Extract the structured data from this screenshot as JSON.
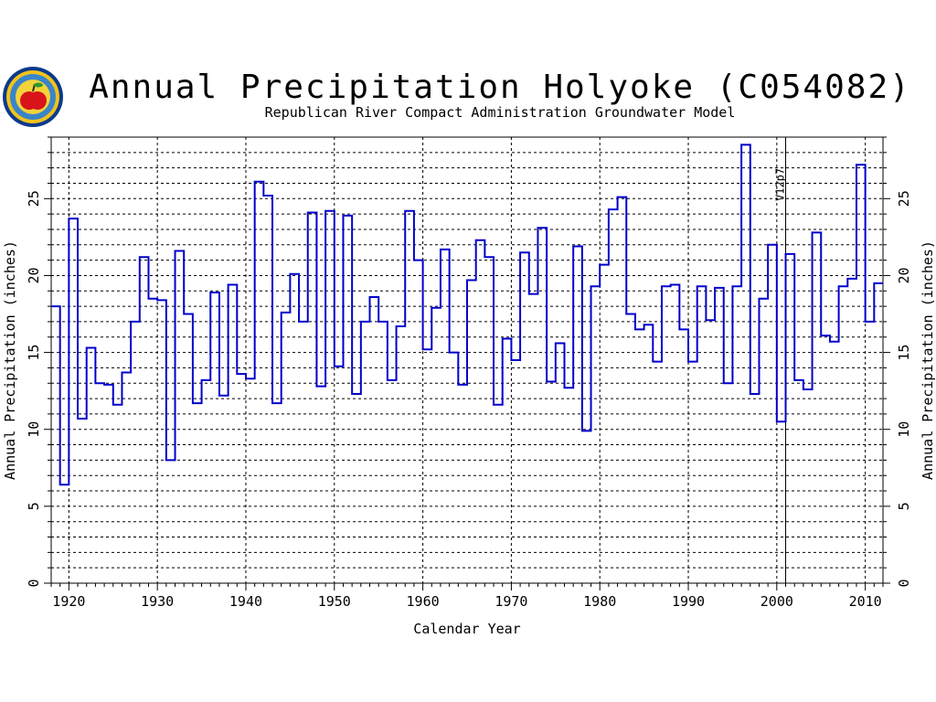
{
  "chart_data": {
    "type": "line",
    "step": true,
    "title": "Annual Precipitation Holyoke (C054082)",
    "subtitle": "Republican River Compact Administration Groundwater Model",
    "xlabel": "Calendar Year",
    "ylabel_left": "Annual Precipitation (inches)",
    "ylabel_right": "Annual Precipitation (inches)",
    "xlim": [
      1918,
      2012
    ],
    "ylim": [
      0,
      29
    ],
    "xticks": [
      "1920",
      "1930",
      "1940",
      "1950",
      "1960",
      "1970",
      "1980",
      "1990",
      "2000",
      "2010"
    ],
    "yticks": [
      "0",
      "5",
      "10",
      "15",
      "20",
      "25"
    ],
    "grid": true,
    "annotation": {
      "text": "V12p7",
      "x": 2001
    },
    "series_color": "#0000cc",
    "x": [
      1918,
      1919,
      1920,
      1921,
      1922,
      1923,
      1924,
      1925,
      1926,
      1927,
      1928,
      1929,
      1930,
      1931,
      1932,
      1933,
      1934,
      1935,
      1936,
      1937,
      1938,
      1939,
      1940,
      1941,
      1942,
      1943,
      1944,
      1945,
      1946,
      1947,
      1948,
      1949,
      1950,
      1951,
      1952,
      1953,
      1954,
      1955,
      1956,
      1957,
      1958,
      1959,
      1960,
      1961,
      1962,
      1963,
      1964,
      1965,
      1966,
      1967,
      1968,
      1969,
      1970,
      1971,
      1972,
      1973,
      1974,
      1975,
      1976,
      1977,
      1978,
      1979,
      1980,
      1981,
      1982,
      1983,
      1984,
      1985,
      1986,
      1987,
      1988,
      1989,
      1990,
      1991,
      1992,
      1993,
      1994,
      1995,
      1996,
      1997,
      1998,
      1999,
      2000,
      2001,
      2002,
      2003,
      2004,
      2005,
      2006,
      2007,
      2008,
      2009,
      2010,
      2011
    ],
    "values": [
      18.0,
      6.4,
      23.7,
      10.7,
      15.3,
      13.0,
      12.9,
      11.6,
      13.7,
      17.0,
      21.2,
      18.5,
      18.4,
      8.0,
      21.6,
      17.5,
      11.7,
      13.2,
      18.9,
      12.2,
      19.4,
      13.6,
      13.3,
      26.1,
      25.2,
      11.7,
      17.6,
      20.1,
      17.0,
      24.1,
      12.8,
      24.2,
      14.1,
      23.9,
      12.3,
      17.0,
      18.6,
      17.0,
      13.2,
      16.7,
      24.2,
      21.0,
      15.2,
      17.9,
      21.7,
      15.0,
      12.9,
      19.7,
      22.3,
      21.2,
      11.6,
      15.9,
      14.5,
      21.5,
      18.8,
      23.1,
      13.1,
      15.6,
      12.7,
      21.9,
      9.9,
      19.3,
      20.7,
      24.3,
      25.1,
      17.5,
      16.5,
      16.8,
      14.4,
      19.3,
      19.4,
      16.5,
      14.4,
      19.3,
      17.1,
      19.2,
      13.0,
      19.3,
      28.5,
      12.3,
      18.5,
      22.0,
      10.5,
      21.4,
      13.2,
      12.6,
      22.8,
      16.1,
      15.7,
      19.3,
      19.8,
      27.2,
      17.0,
      19.5
    ]
  }
}
